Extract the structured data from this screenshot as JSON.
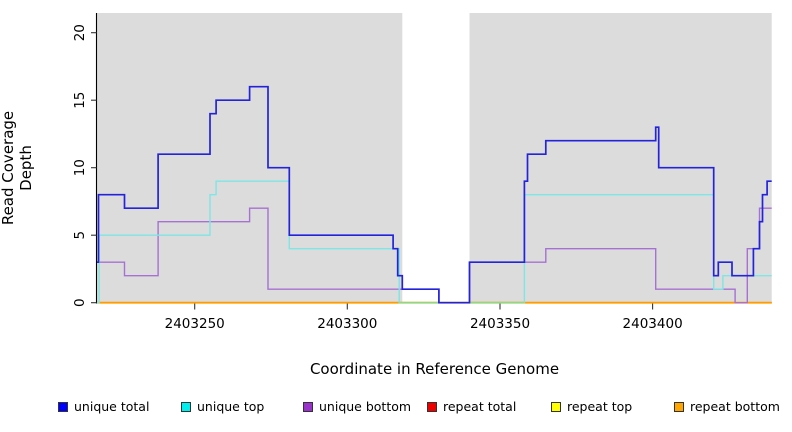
{
  "chart_data": {
    "type": "line",
    "subtype": "step-coverage",
    "title": "",
    "xlabel": "Coordinate in Reference Genome",
    "ylabel": "Read Coverage Depth",
    "xlim": [
      2403218,
      2403439
    ],
    "ylim": [
      0,
      21.5
    ],
    "xticks": [
      2403250,
      2403300,
      2403350,
      2403400
    ],
    "xtick_labels": [
      "2403250",
      "2403300",
      "2403350",
      "2403400"
    ],
    "yticks": [
      0,
      5,
      10,
      15,
      20
    ],
    "ytick_labels": [
      "0",
      "5",
      "10",
      "15",
      "20"
    ],
    "grid": false,
    "legend_position": "bottom",
    "plot_bg_color": "#dcdcdc",
    "axis_color": "#000000",
    "shaded_regions": [
      [
        2403218,
        2403318
      ],
      [
        2403340,
        2403439
      ]
    ],
    "gap_region": [
      2403318,
      2403340
    ],
    "series": [
      {
        "name": "unique total",
        "line_color": "#2323dc",
        "legend_color": "#0000ff",
        "line_width": 1.7,
        "steps": [
          [
            2403218,
            3
          ],
          [
            2403218.5,
            8
          ],
          [
            2403227,
            7
          ],
          [
            2403238,
            11
          ],
          [
            2403255,
            14
          ],
          [
            2403257,
            15
          ],
          [
            2403268,
            16
          ],
          [
            2403274,
            10
          ],
          [
            2403281,
            5
          ],
          [
            2403315,
            4
          ],
          [
            2403316.5,
            2
          ],
          [
            2403318,
            1
          ],
          [
            2403330,
            0
          ],
          [
            2403340,
            3
          ],
          [
            2403358,
            9
          ],
          [
            2403359,
            11
          ],
          [
            2403365,
            12
          ],
          [
            2403401,
            13
          ],
          [
            2403402,
            10
          ],
          [
            2403420,
            2
          ],
          [
            2403421.5,
            3
          ],
          [
            2403426,
            2
          ],
          [
            2403433,
            4
          ],
          [
            2403435,
            6
          ],
          [
            2403436,
            8
          ],
          [
            2403437.5,
            9
          ]
        ]
      },
      {
        "name": "unique top",
        "line_color": "#7fe5e5",
        "legend_color": "#00eeee",
        "line_width": 1.4,
        "steps": [
          [
            2403218,
            0
          ],
          [
            2403218.7,
            5
          ],
          [
            2403255,
            8
          ],
          [
            2403257,
            9
          ],
          [
            2403281,
            4
          ],
          [
            2403317,
            0
          ],
          [
            2403358,
            8
          ],
          [
            2403420,
            1
          ],
          [
            2403423,
            2
          ]
        ]
      },
      {
        "name": "unique bottom",
        "line_color": "#a671d2",
        "legend_color": "#9933cc",
        "line_width": 1.4,
        "steps": [
          [
            2403218,
            3
          ],
          [
            2403227,
            2
          ],
          [
            2403238,
            6
          ],
          [
            2403268,
            7
          ],
          [
            2403274,
            1
          ],
          [
            2403330,
            0
          ],
          [
            2403340,
            3
          ],
          [
            2403365,
            4
          ],
          [
            2403401,
            1
          ],
          [
            2403427,
            0
          ],
          [
            2403431,
            4
          ],
          [
            2403435,
            7
          ]
        ]
      },
      {
        "name": "repeat total",
        "line_color": "#ee0000",
        "legend_color": "#ee0000",
        "line_width": 1.4,
        "steps": [
          [
            2403218,
            0
          ]
        ]
      },
      {
        "name": "repeat top",
        "line_color": "#f5f500",
        "legend_color": "#ffff00",
        "line_width": 1.4,
        "steps": [
          [
            2403218,
            0
          ]
        ]
      },
      {
        "name": "repeat bottom",
        "line_color": "#ff9c00",
        "legend_color": "#ffa500",
        "line_width": 1.9,
        "steps": [
          [
            2403218,
            0
          ]
        ]
      }
    ],
    "blend_segments": [
      {
        "x": [
          2403317,
          2403358
        ],
        "y": 0,
        "color": "#8cd98c",
        "note": "unique top at depth 0 blending over repeat lines"
      }
    ]
  }
}
